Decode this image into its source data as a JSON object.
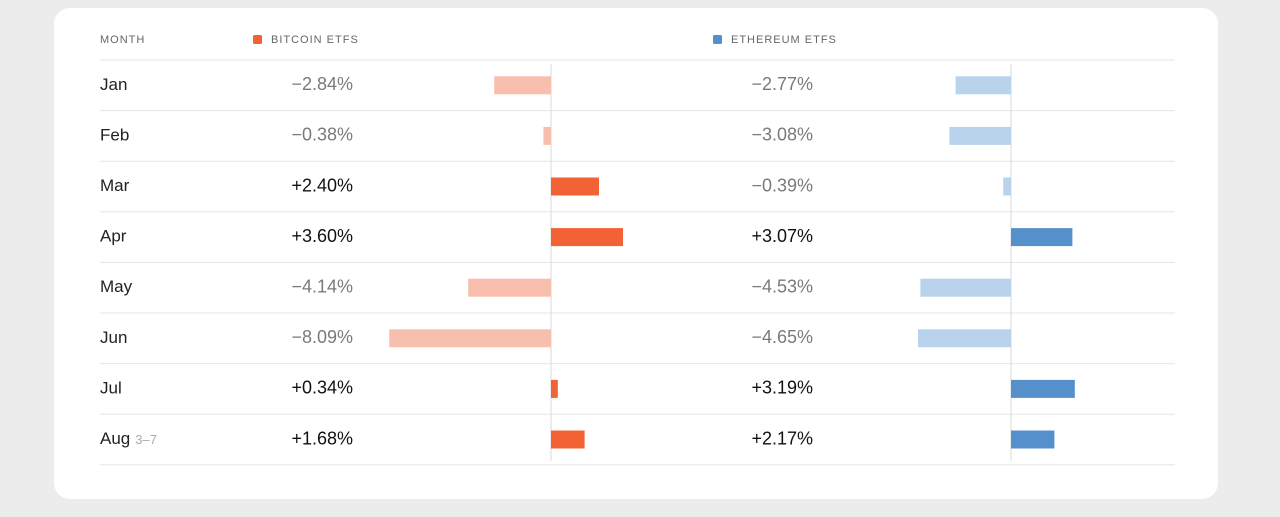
{
  "chart_data": {
    "type": "diverging-bar-table",
    "category_header": "MONTH",
    "categories": [
      "Jan",
      "Feb",
      "Mar",
      "Apr",
      "May",
      "Jun",
      "Jul",
      "Aug"
    ],
    "category_notes": [
      null,
      null,
      null,
      null,
      null,
      null,
      null,
      "3–7"
    ],
    "xlim": [
      -8.5,
      8.5
    ],
    "series": [
      {
        "name": "BITCOIN ETFS",
        "color": "#f26235",
        "negative_color": "#f9bfae",
        "values": [
          -2.84,
          -0.38,
          2.4,
          3.6,
          -4.14,
          -8.09,
          0.34,
          1.68
        ],
        "value_labels": [
          "−2.84%",
          "−0.38%",
          "+2.40%",
          "+3.60%",
          "−4.14%",
          "−8.09%",
          "+0.34%",
          "+1.68%"
        ]
      },
      {
        "name": "ETHEREUM ETFS",
        "color": "#5590cc",
        "negative_color": "#bad3ec",
        "values": [
          -2.77,
          -3.08,
          -0.39,
          3.07,
          -4.53,
          -4.65,
          3.19,
          2.17
        ],
        "value_labels": [
          "−2.77%",
          "−3.08%",
          "−0.39%",
          "+3.07%",
          "−4.53%",
          "−4.65%",
          "+3.19%",
          "+2.17%"
        ]
      }
    ]
  }
}
